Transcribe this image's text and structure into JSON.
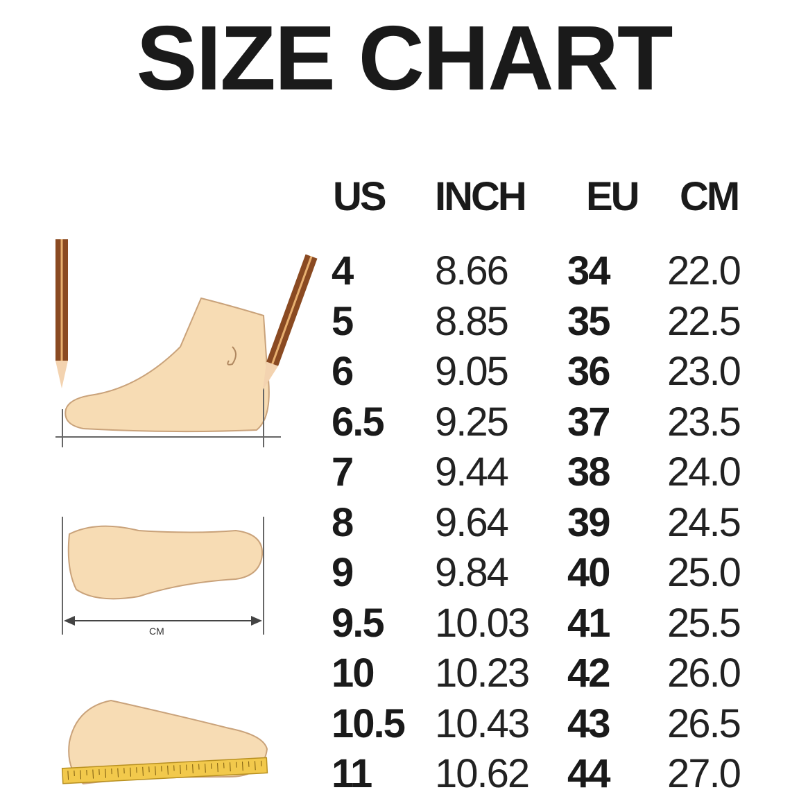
{
  "title": "SIZE CHART",
  "chart_data": {
    "type": "table",
    "title": "SIZE CHART",
    "columns": [
      "US",
      "INCH",
      "EU",
      "CM"
    ],
    "rows": [
      [
        "4",
        "8.66",
        "34",
        "22.0"
      ],
      [
        "5",
        "8.85",
        "35",
        "22.5"
      ],
      [
        "6",
        "9.05",
        "36",
        "23.0"
      ],
      [
        "6.5",
        "9.25",
        "37",
        "23.5"
      ],
      [
        "7",
        "9.44",
        "38",
        "24.0"
      ],
      [
        "8",
        "9.64",
        "39",
        "24.5"
      ],
      [
        "9",
        "9.84",
        "40",
        "25.0"
      ],
      [
        "9.5",
        "10.03",
        "41",
        "25.5"
      ],
      [
        "10",
        "10.23",
        "42",
        "26.0"
      ],
      [
        "10.5",
        "10.43",
        "43",
        "26.5"
      ],
      [
        "11",
        "10.62",
        "44",
        "27.0"
      ]
    ]
  },
  "illustrations": {
    "sole_measure_label": "CM",
    "foot_color": "#f7dcb4",
    "pencil_color": "#8a4a22",
    "ruler_color": "#f2c94c"
  }
}
